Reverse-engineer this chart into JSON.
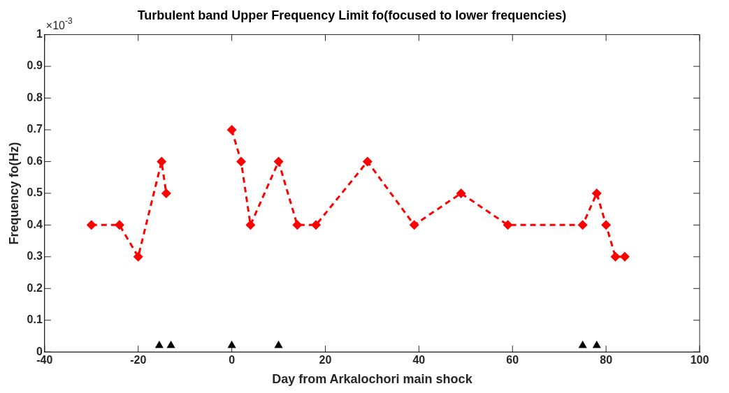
{
  "chart_data": {
    "type": "line",
    "title": "Turbulent band Upper Frequency Limit fo(focused to lower frequencies)",
    "xlabel": "Day from Arkalochori main shock",
    "ylabel": "Frequency fo(Hz)",
    "annotations": [
      "×10$^{-3}$"
    ],
    "xlim": [
      -40,
      100
    ],
    "xticks": [
      -40,
      -20,
      0,
      20,
      40,
      60,
      80,
      100
    ],
    "ylim": [
      0,
      1
    ],
    "yticks": [
      0,
      0.1,
      0.2,
      0.3,
      0.4,
      0.5,
      0.6,
      0.7,
      0.8,
      0.9,
      1
    ],
    "grid": false,
    "legend": false,
    "marker": "diamond",
    "line_style": "dashed",
    "series": [
      {
        "color": "#ff0000",
        "x": [
          -30,
          -24,
          -20,
          -15,
          -14,
          -7,
          0,
          2,
          4,
          10,
          14,
          18,
          29,
          39,
          49,
          59,
          75,
          78,
          80,
          82,
          84
        ],
        "values": [
          0.4,
          0.4,
          0.3,
          0.6,
          0.5,
          null,
          0.7,
          0.6,
          0.4,
          0.6,
          0.4,
          0.4,
          0.6,
          0.4,
          0.5,
          0.4,
          0.4,
          0.5,
          0.4,
          0.3,
          0.3
        ]
      },
      {
        "type": "scatter",
        "marker": "triangle",
        "color": "#000000",
        "x": [
          -15.5,
          -13,
          0,
          10,
          75,
          78
        ],
        "values": [
          0.02,
          0.02,
          0.02,
          0.02,
          0.02,
          0.02
        ]
      }
    ]
  }
}
